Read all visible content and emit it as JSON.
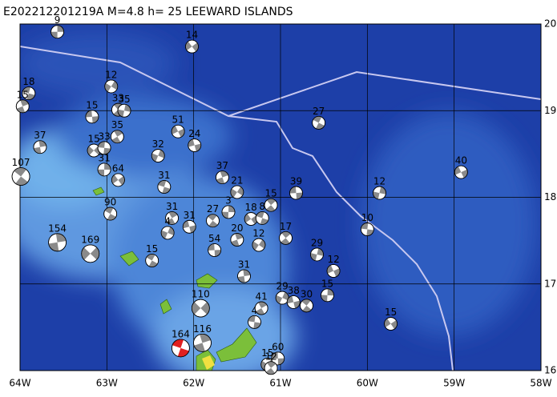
{
  "map": {
    "title": "E202212201219A M=4.8 h= 25 LEEWARD ISLANDS",
    "xlim": [
      -64,
      -58
    ],
    "ylim": [
      16,
      20
    ],
    "xticks": [
      {
        "value": -64,
        "label": "64W"
      },
      {
        "value": -63,
        "label": "63W"
      },
      {
        "value": -62,
        "label": "62W"
      },
      {
        "value": -61,
        "label": "61W"
      },
      {
        "value": -60,
        "label": "60W"
      },
      {
        "value": -59,
        "label": "59W"
      },
      {
        "value": -58,
        "label": "58W"
      }
    ],
    "yticks": [
      {
        "value": 16,
        "label": "16N"
      },
      {
        "value": 17,
        "label": "17N"
      },
      {
        "value": 18,
        "label": "18N"
      },
      {
        "value": 19,
        "label": "19N"
      },
      {
        "value": 20,
        "label": "20N"
      }
    ],
    "grid": true,
    "ball_color": "#8a8a8a",
    "events": [
      {
        "lon": -63.57,
        "lat": 19.91,
        "depth": 9
      },
      {
        "lon": -62.02,
        "lat": 19.74,
        "depth": 14
      },
      {
        "lon": -63.9,
        "lat": 19.2,
        "depth": 18
      },
      {
        "lon": -63.97,
        "lat": 19.05,
        "depth": 15
      },
      {
        "lon": -62.95,
        "lat": 19.28,
        "depth": 12
      },
      {
        "lon": -63.17,
        "lat": 18.93,
        "depth": 15
      },
      {
        "lon": -62.87,
        "lat": 19.01,
        "depth": 33
      },
      {
        "lon": -62.8,
        "lat": 19.0,
        "depth": 35
      },
      {
        "lon": -62.18,
        "lat": 18.76,
        "depth": 51
      },
      {
        "lon": -60.56,
        "lat": 18.86,
        "depth": 27
      },
      {
        "lon": -63.77,
        "lat": 18.58,
        "depth": 37
      },
      {
        "lon": -63.15,
        "lat": 18.54,
        "depth": 15
      },
      {
        "lon": -63.03,
        "lat": 18.57,
        "depth": 33
      },
      {
        "lon": -62.88,
        "lat": 18.7,
        "depth": 35
      },
      {
        "lon": -62.41,
        "lat": 18.48,
        "depth": 32
      },
      {
        "lon": -61.99,
        "lat": 18.6,
        "depth": 24
      },
      {
        "lon": -63.99,
        "lat": 18.24,
        "depth": 107
      },
      {
        "lon": -63.03,
        "lat": 18.32,
        "depth": 31
      },
      {
        "lon": -62.87,
        "lat": 18.2,
        "depth": 64
      },
      {
        "lon": -62.34,
        "lat": 18.12,
        "depth": 31
      },
      {
        "lon": -61.67,
        "lat": 18.23,
        "depth": 37
      },
      {
        "lon": -61.5,
        "lat": 18.06,
        "depth": 21
      },
      {
        "lon": -60.82,
        "lat": 18.05,
        "depth": 39
      },
      {
        "lon": -61.11,
        "lat": 17.91,
        "depth": 15
      },
      {
        "lon": -59.86,
        "lat": 18.05,
        "depth": 12
      },
      {
        "lon": -58.92,
        "lat": 18.29,
        "depth": 40
      },
      {
        "lon": -62.96,
        "lat": 17.81,
        "depth": 90
      },
      {
        "lon": -63.57,
        "lat": 17.48,
        "depth": 154
      },
      {
        "lon": -63.19,
        "lat": 17.35,
        "depth": 169
      },
      {
        "lon": -60.0,
        "lat": 17.63,
        "depth": 10
      },
      {
        "lon": -62.25,
        "lat": 17.76,
        "depth": 31
      },
      {
        "lon": -62.3,
        "lat": 17.59,
        "depth": 4
      },
      {
        "lon": -62.05,
        "lat": 17.66,
        "depth": 31
      },
      {
        "lon": -61.78,
        "lat": 17.73,
        "depth": 27
      },
      {
        "lon": -61.6,
        "lat": 17.83,
        "depth": 3
      },
      {
        "lon": -61.34,
        "lat": 17.75,
        "depth": 18
      },
      {
        "lon": -61.21,
        "lat": 17.76,
        "depth": 8
      },
      {
        "lon": -61.5,
        "lat": 17.51,
        "depth": 20
      },
      {
        "lon": -61.25,
        "lat": 17.45,
        "depth": 12
      },
      {
        "lon": -61.76,
        "lat": 17.39,
        "depth": 54
      },
      {
        "lon": -60.94,
        "lat": 17.53,
        "depth": 17
      },
      {
        "lon": -60.58,
        "lat": 17.34,
        "depth": 29
      },
      {
        "lon": -60.39,
        "lat": 17.15,
        "depth": 12
      },
      {
        "lon": -62.48,
        "lat": 17.27,
        "depth": 15
      },
      {
        "lon": -61.42,
        "lat": 17.09,
        "depth": 31
      },
      {
        "lon": -61.92,
        "lat": 16.72,
        "depth": 110
      },
      {
        "lon": -61.3,
        "lat": 16.56,
        "depth": 4
      },
      {
        "lon": -61.22,
        "lat": 16.72,
        "depth": 41
      },
      {
        "lon": -60.98,
        "lat": 16.84,
        "depth": 29
      },
      {
        "lon": -60.85,
        "lat": 16.79,
        "depth": 38
      },
      {
        "lon": -60.7,
        "lat": 16.75,
        "depth": 30
      },
      {
        "lon": -60.46,
        "lat": 16.87,
        "depth": 15
      },
      {
        "lon": -59.73,
        "lat": 16.54,
        "depth": 15
      },
      {
        "lon": -62.15,
        "lat": 16.26,
        "depth": 164,
        "color": "#e02020"
      },
      {
        "lon": -61.9,
        "lat": 16.32,
        "depth": 116
      },
      {
        "lon": -61.15,
        "lat": 16.07,
        "depth": 15
      },
      {
        "lon": -61.03,
        "lat": 16.14,
        "depth": 60
      },
      {
        "lon": -61.11,
        "lat": 16.03,
        "depth": 12
      }
    ]
  }
}
